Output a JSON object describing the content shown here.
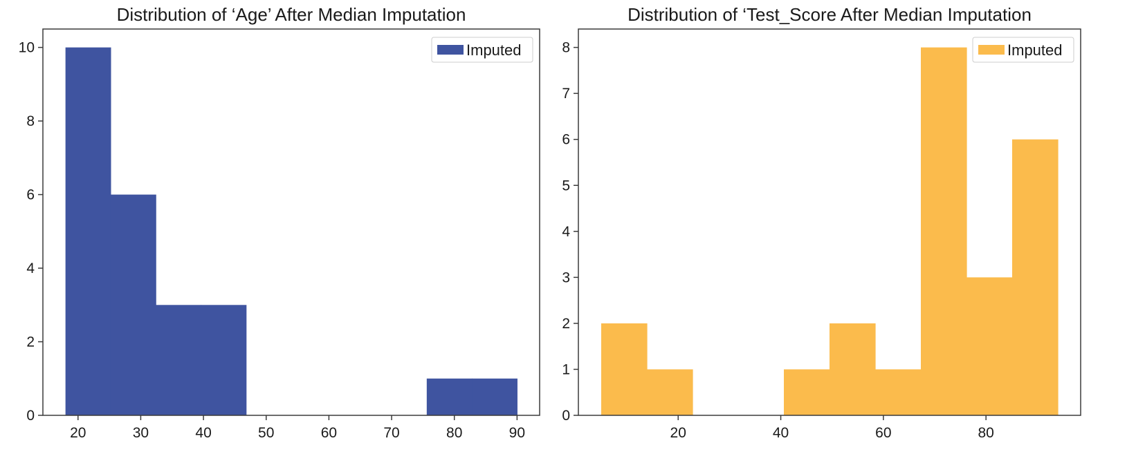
{
  "chart_data": [
    {
      "type": "bar",
      "title": "Distribution of ‘Age’ After Median Imputation",
      "xlabel": "",
      "ylabel": "",
      "color": "#3f54a0",
      "legend": {
        "label": "Imputed",
        "placement": "top-right"
      },
      "bin_edges": [
        18,
        25.2,
        32.4,
        39.6,
        46.8,
        54,
        61.2,
        68.4,
        75.6,
        82.8,
        90
      ],
      "values": [
        10,
        6,
        3,
        3,
        0,
        0,
        0,
        0,
        1,
        1
      ],
      "xlim": [
        14.4,
        93.6
      ],
      "ylim": [
        0,
        10.5
      ],
      "xticks": [
        20,
        30,
        40,
        50,
        60,
        70,
        80,
        90
      ],
      "yticks": [
        0,
        2,
        4,
        6,
        8,
        10
      ],
      "grid": false
    },
    {
      "type": "bar",
      "title": "Distribution of ‘Test_Score After Median Imputation",
      "xlabel": "",
      "ylabel": "",
      "color": "#fbbb4c",
      "legend": {
        "label": "Imputed",
        "placement": "top-right"
      },
      "bin_edges": [
        5,
        13.9,
        22.8,
        31.7,
        40.6,
        49.5,
        58.4,
        67.3,
        76.2,
        85.1,
        94
      ],
      "values": [
        2,
        1,
        0,
        0,
        1,
        2,
        1,
        8,
        3,
        6
      ],
      "xlim": [
        0.55,
        98.45
      ],
      "ylim": [
        0,
        8.4
      ],
      "xticks": [
        20,
        40,
        60,
        80
      ],
      "yticks": [
        0,
        1,
        2,
        3,
        4,
        5,
        6,
        7,
        8
      ],
      "grid": false
    }
  ]
}
